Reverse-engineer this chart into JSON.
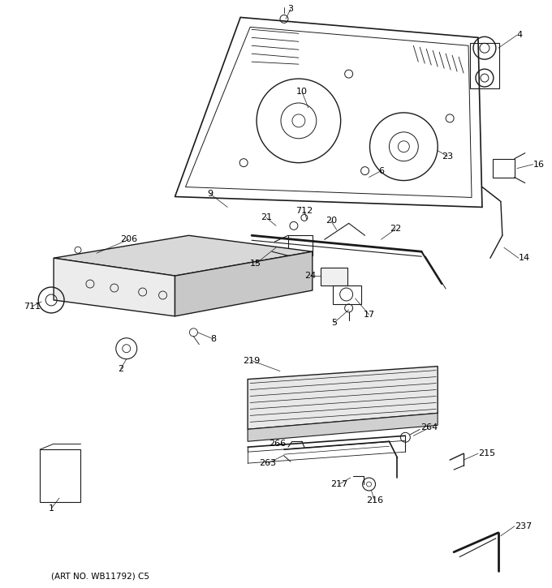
{
  "art_no_text": "(ART NO. WB11792) C5",
  "bg_color": "#ffffff",
  "line_color": "#1a1a1a",
  "fig_width": 6.8,
  "fig_height": 7.25,
  "dpi": 100
}
